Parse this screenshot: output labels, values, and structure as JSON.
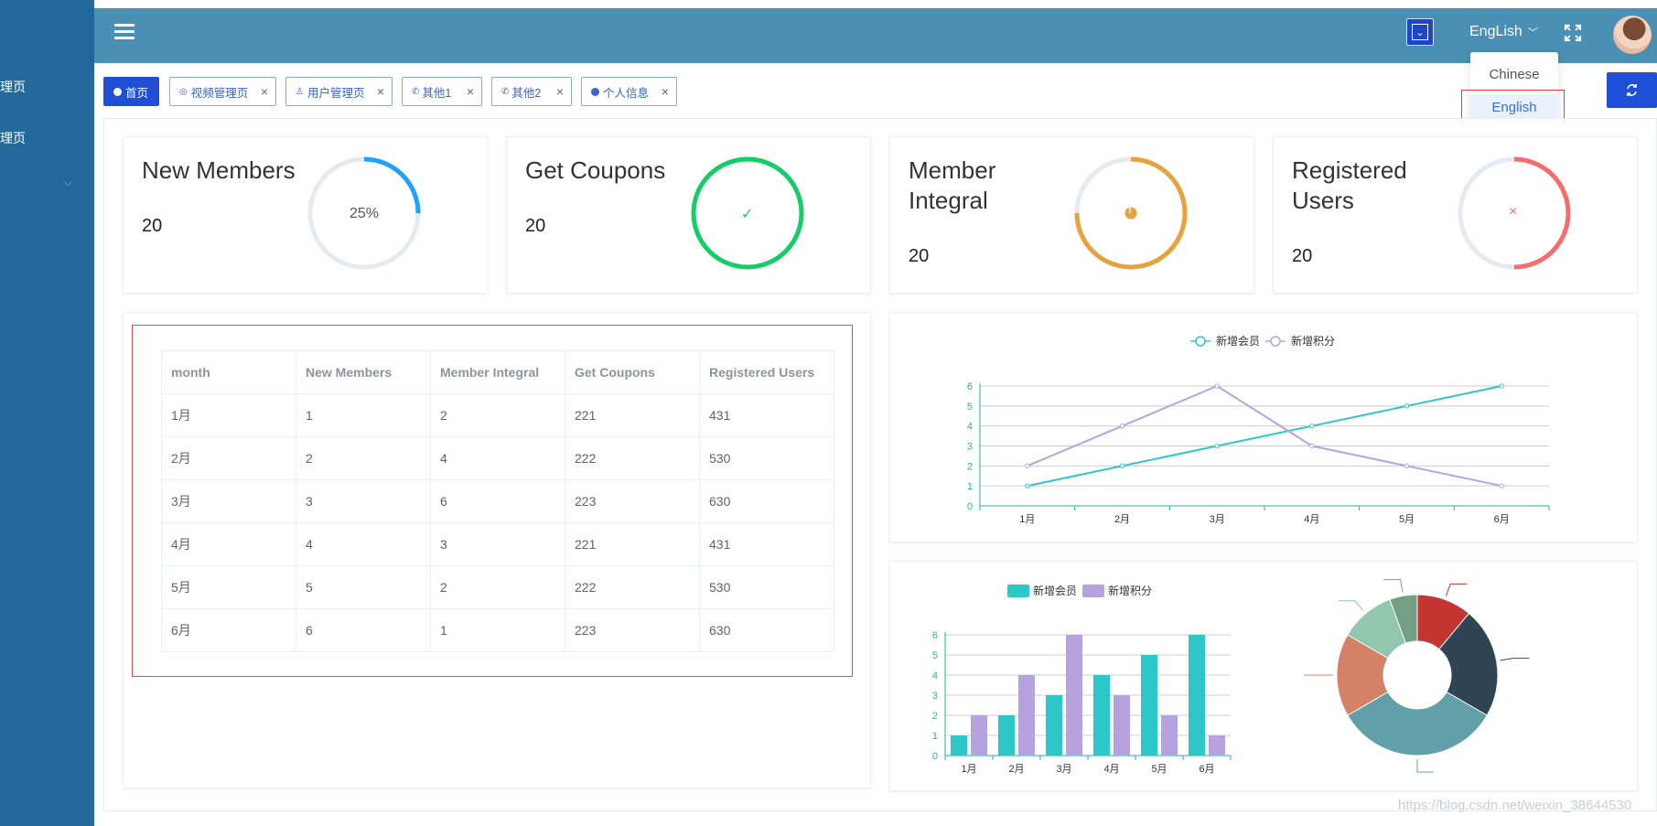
{
  "sidebar": {
    "items": [
      {
        "label": "理页"
      },
      {
        "label": "理页"
      }
    ]
  },
  "header": {
    "language": "EngLish",
    "language_menu": [
      {
        "label": "Chinese",
        "selected": false
      },
      {
        "label": "English",
        "selected": true
      }
    ]
  },
  "tabs": [
    {
      "label": "首页",
      "active": true
    },
    {
      "label": "视频管理页",
      "active": false
    },
    {
      "label": "用户管理页",
      "active": false
    },
    {
      "label": "其他1",
      "active": false
    },
    {
      "label": "其他2",
      "active": false
    },
    {
      "label": "个人信息",
      "active": false
    }
  ],
  "stat_cards": [
    {
      "title": "New Members",
      "value": "20",
      "ring_label": "25%",
      "progress": 0.25,
      "color": "#20a0ff"
    },
    {
      "title": "Get Coupons",
      "value": "20",
      "ring_label": "✓",
      "progress": 1.0,
      "color": "#13ce66"
    },
    {
      "title": "Member Integral",
      "value": "20",
      "ring_label": "!",
      "progress": 0.75,
      "color": "#e6a23c"
    },
    {
      "title": "Registered Users",
      "value": "20",
      "ring_label": "×",
      "progress": 0.5,
      "color": "#f56c6c"
    }
  ],
  "table": {
    "headers": [
      "month",
      "New Members",
      "Member Integral",
      "Get Coupons",
      "Registered Users"
    ],
    "rows": [
      [
        "1月",
        "1",
        "2",
        "221",
        "431"
      ],
      [
        "2月",
        "2",
        "4",
        "222",
        "530"
      ],
      [
        "3月",
        "3",
        "6",
        "223",
        "630"
      ],
      [
        "4月",
        "4",
        "3",
        "221",
        "431"
      ],
      [
        "5月",
        "5",
        "2",
        "222",
        "530"
      ],
      [
        "6月",
        "6",
        "1",
        "223",
        "630"
      ]
    ]
  },
  "chart_data": [
    {
      "type": "line",
      "categories": [
        "1月",
        "2月",
        "3月",
        "4月",
        "5月",
        "6月"
      ],
      "series": [
        {
          "name": "新增会员",
          "values": [
            1,
            2,
            3,
            4,
            5,
            6
          ],
          "color": "#2ec7c9"
        },
        {
          "name": "新增积分",
          "values": [
            2,
            4,
            6,
            3,
            2,
            1
          ],
          "color": "#b6a2de"
        }
      ],
      "ylim": [
        0,
        6
      ],
      "yticks": [
        "0",
        "1",
        "2",
        "3",
        "4",
        "5",
        "6"
      ],
      "legend": "top-center",
      "grid": true
    },
    {
      "type": "bar",
      "categories": [
        "1月",
        "2月",
        "3月",
        "4月",
        "5月",
        "6月"
      ],
      "series": [
        {
          "name": "新增会员",
          "values": [
            1,
            2,
            3,
            4,
            5,
            6
          ],
          "color": "#2ec7c9"
        },
        {
          "name": "新增积分",
          "values": [
            2,
            4,
            6,
            3,
            2,
            1
          ],
          "color": "#b6a2de"
        }
      ],
      "ylim": [
        0,
        6
      ],
      "yticks": [
        "0",
        "1",
        "2",
        "3",
        "4",
        "5",
        "6"
      ],
      "legend": "top-center",
      "grid": true
    },
    {
      "type": "pie",
      "donut": true,
      "slices": [
        {
          "value": 10,
          "color": "#c23531"
        },
        {
          "value": 20,
          "color": "#2f4554"
        },
        {
          "value": 30,
          "color": "#61a0a8"
        },
        {
          "value": 15,
          "color": "#d48265"
        },
        {
          "value": 10,
          "color": "#91c7ae"
        },
        {
          "value": 5,
          "color": "#749f83"
        }
      ]
    }
  ],
  "watermark": "https://blog.csdn.net/weixin_38644530"
}
